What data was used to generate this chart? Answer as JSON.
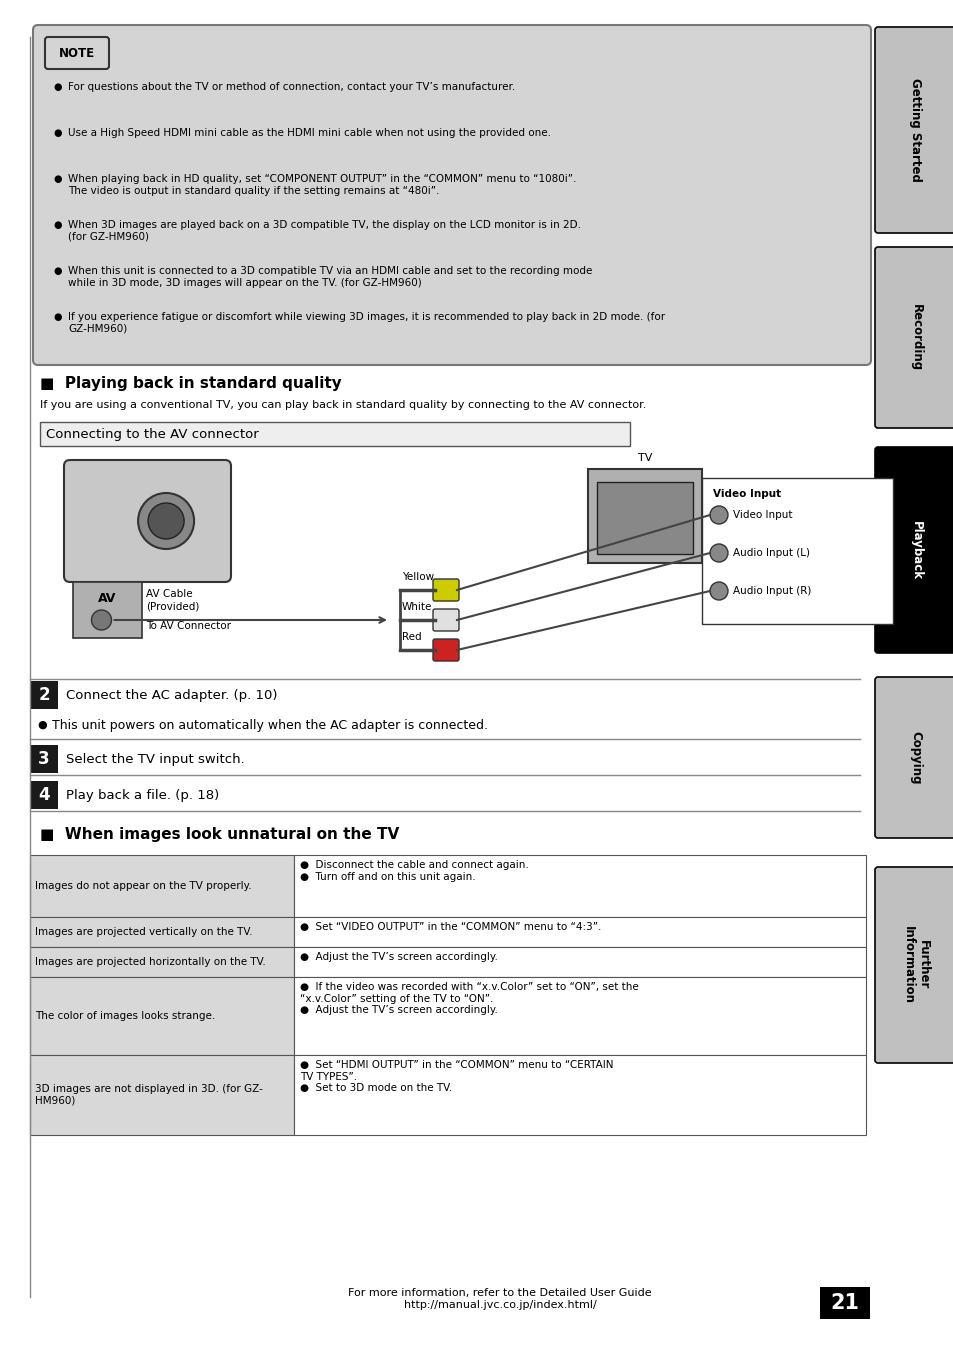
{
  "page_bg": "#ffffff",
  "note_bg": "#d4d4d4",
  "step_box_bg": "#1a1a1a",
  "sidebar_labels": [
    "Getting Started",
    "Recording",
    "Playback",
    "Copying",
    "Further\nInformation"
  ],
  "sidebar_active": 2,
  "note_bullets": [
    "For questions about the TV or method of connection, contact your TV’s manufacturer.",
    "Use a High Speed HDMI mini cable as the HDMI mini cable when not using the provided one.",
    "When playing back in HD quality, set “COMPONENT OUTPUT” in the “COMMON” menu to “1080i”.\nThe video is output in standard quality if the setting remains at “480i”.",
    "When 3D images are played back on a 3D compatible TV, the display on the LCD monitor is in 2D.\n(for GZ-HM960)",
    "When this unit is connected to a 3D compatible TV via an HDMI cable and set to the recording mode\nwhile in 3D mode, 3D images will appear on the TV. (for GZ-HM960)",
    "If you experience fatigue or discomfort while viewing 3D images, it is recommended to play back in 2D mode. (for\nGZ-HM960)"
  ],
  "section1_title": "■  Playing back in standard quality",
  "section1_subtitle": "If you are using a conventional TV, you can play back in standard quality by connecting to the AV connector.",
  "connector_title": "Connecting to the AV connector",
  "step2_text": "Connect the AC adapter. (p. 10)",
  "step2_bullet": "This unit powers on automatically when the AC adapter is connected.",
  "step3_text": "Select the TV input switch.",
  "step4_text": "Play back a file. (p. 18)",
  "section2_title": "■  When images look unnatural on the TV",
  "table_rows": [
    [
      "Images do not appear on the TV properly.",
      "●  Disconnect the cable and connect again.\n●  Turn off and on this unit again."
    ],
    [
      "Images are projected vertically on the TV.",
      "●  Set “VIDEO OUTPUT” in the “COMMON” menu to “4:3”."
    ],
    [
      "Images are projected horizontally on the TV.",
      "●  Adjust the TV’s screen accordingly."
    ],
    [
      "The color of images looks strange.",
      "●  If the video was recorded with “x.v.Color” set to “ON”, set the\n“x.v.Color” setting of the TV to “ON”.\n●  Adjust the TV’s screen accordingly."
    ],
    [
      "3D images are not displayed in 3D. (for GZ-\nHM960)",
      "●  Set “HDMI OUTPUT” in the “COMMON” menu to “CERTAIN\nTV TYPES”.\n●  Set to 3D mode on the TV."
    ]
  ],
  "footer_text": "For more information, refer to the Detailed User Guide\nhttp://manual.jvc.co.jp/index.html/",
  "page_number": "21"
}
